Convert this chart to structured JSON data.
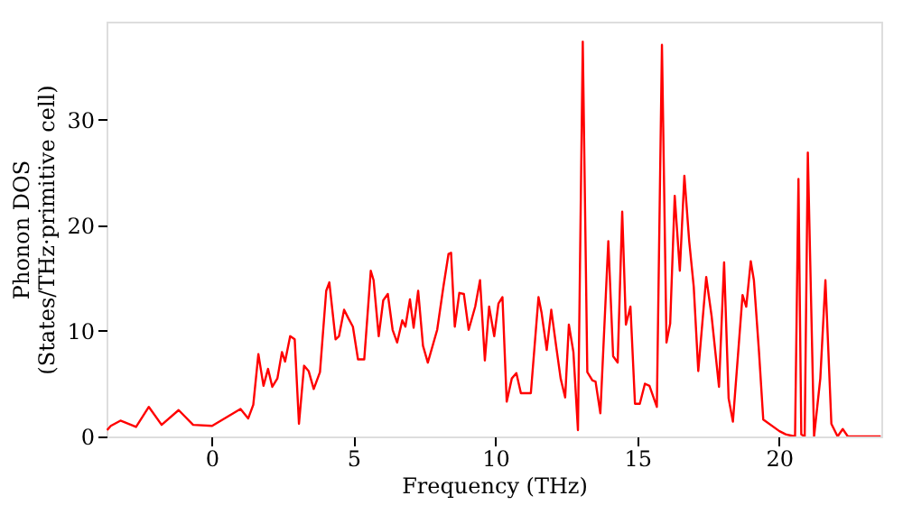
{
  "chart_data": {
    "type": "line",
    "xlabel": "Frequency (THz)",
    "ylabel": "Phonon DOS\n(States/THz·primitive cell)",
    "xlim": [
      -3.7,
      23.6
    ],
    "ylim": [
      0,
      39.3
    ],
    "xticks": [
      0,
      5,
      10,
      15,
      20
    ],
    "yticks": [
      0,
      10,
      20,
      30
    ],
    "grid": false,
    "series": [
      {
        "color": "#ff0000",
        "x": [
          -3.68,
          -3.55,
          -3.21,
          -2.66,
          -2.21,
          -1.76,
          -1.16,
          -0.65,
          0.02,
          0.58,
          1.02,
          1.29,
          1.47,
          1.65,
          1.83,
          1.99,
          2.14,
          2.32,
          2.48,
          2.59,
          2.77,
          2.93,
          3.08,
          3.26,
          3.42,
          3.6,
          3.82,
          4.04,
          4.15,
          4.37,
          4.49,
          4.67,
          4.82,
          4.98,
          5.16,
          5.38,
          5.61,
          5.71,
          5.89,
          6.05,
          6.21,
          6.38,
          6.54,
          6.72,
          6.83,
          6.99,
          7.12,
          7.28,
          7.45,
          7.62,
          7.95,
          8.17,
          8.35,
          8.44,
          8.57,
          8.73,
          8.89,
          9.06,
          9.29,
          9.46,
          9.63,
          9.78,
          9.96,
          10.11,
          10.25,
          10.4,
          10.58,
          10.74,
          10.9,
          11.25,
          11.52,
          11.63,
          11.81,
          11.97,
          12.14,
          12.3,
          12.46,
          12.59,
          12.75,
          12.91,
          13.08,
          13.24,
          13.42,
          13.53,
          13.7,
          13.98,
          14.15,
          14.31,
          14.47,
          14.6,
          14.76,
          14.92,
          15.09,
          15.27,
          15.43,
          15.69,
          15.87,
          16.03,
          16.16,
          16.32,
          16.5,
          16.66,
          16.83,
          16.99,
          17.15,
          17.43,
          17.62,
          17.88,
          18.06,
          18.22,
          18.37,
          18.71,
          18.84,
          19.0,
          19.11,
          19.29,
          19.44,
          20.01,
          20.23,
          20.56,
          20.68,
          20.78,
          20.9,
          21.01,
          21.23,
          21.45,
          21.63,
          21.84,
          22.06,
          22.24,
          22.42,
          23.58
        ],
        "values": [
          0.6,
          1.0,
          1.5,
          0.9,
          2.8,
          1.1,
          2.5,
          1.1,
          1.0,
          1.9,
          2.6,
          1.7,
          3.0,
          7.8,
          4.8,
          6.4,
          4.7,
          5.5,
          8.0,
          7.1,
          9.5,
          9.2,
          1.2,
          6.7,
          6.2,
          4.5,
          6.1,
          13.8,
          14.6,
          9.2,
          9.5,
          12.0,
          11.2,
          10.4,
          7.3,
          7.3,
          15.7,
          14.8,
          9.5,
          12.9,
          13.5,
          10.1,
          8.9,
          11.0,
          10.4,
          13.0,
          10.3,
          13.8,
          8.6,
          7.0,
          10.1,
          14.2,
          17.3,
          17.4,
          10.4,
          13.6,
          13.5,
          10.1,
          12.3,
          14.8,
          7.2,
          12.3,
          9.5,
          12.6,
          13.2,
          3.3,
          5.5,
          6.0,
          4.1,
          4.1,
          13.2,
          11.7,
          8.2,
          12.0,
          8.6,
          5.5,
          3.7,
          10.6,
          8.0,
          0.6,
          37.4,
          6.1,
          5.3,
          5.2,
          2.2,
          18.5,
          7.6,
          7.0,
          21.3,
          10.6,
          12.3,
          3.1,
          3.1,
          5.0,
          4.8,
          2.8,
          37.1,
          8.9,
          10.7,
          22.8,
          15.7,
          24.7,
          18.5,
          14.2,
          6.2,
          15.1,
          11.4,
          4.7,
          16.5,
          3.6,
          1.4,
          13.4,
          12.3,
          16.6,
          14.8,
          8.0,
          1.6,
          0.5,
          0.2,
          0,
          24.4,
          0.2,
          0,
          26.9,
          0,
          5.5,
          14.8,
          1.2,
          0,
          0.7,
          0,
          0
        ]
      }
    ]
  }
}
